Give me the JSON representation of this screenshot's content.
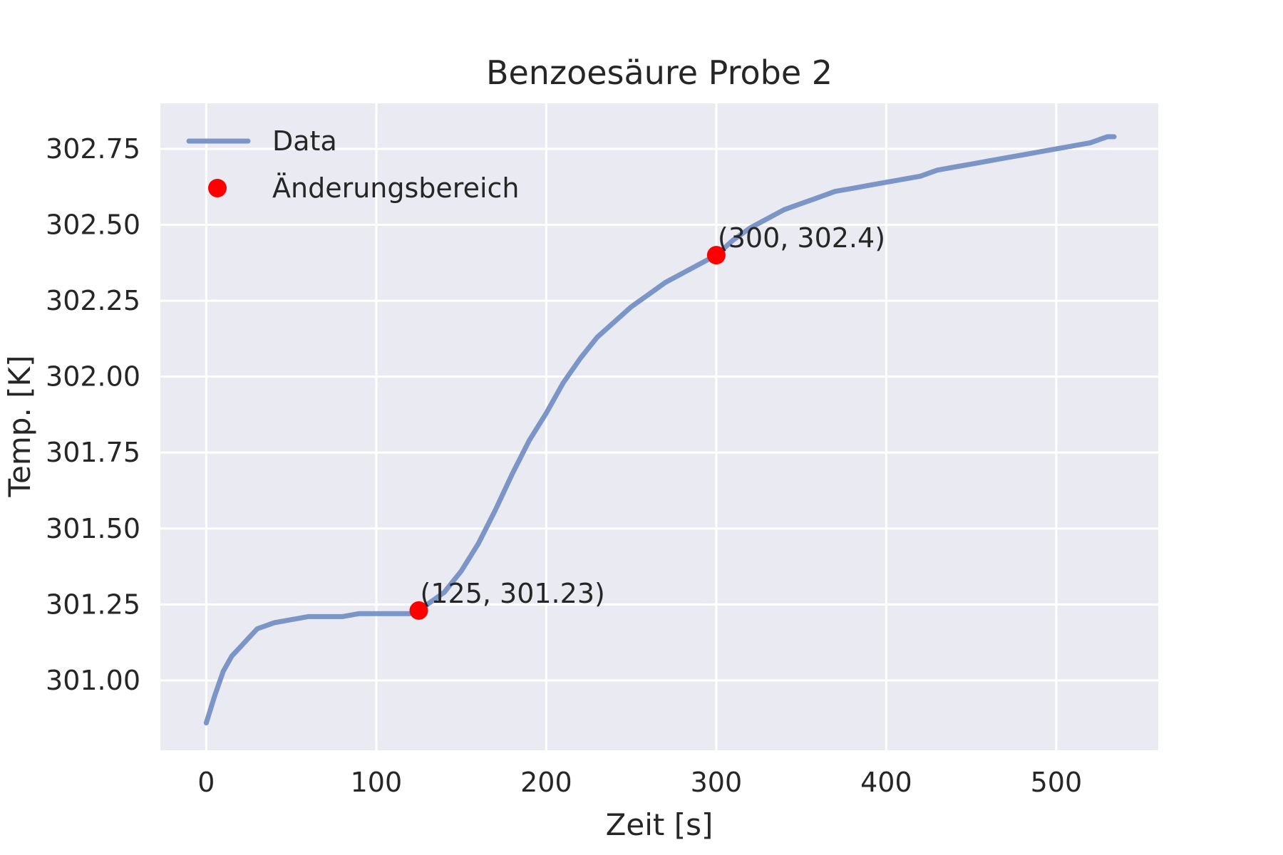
{
  "chart_data": {
    "type": "line",
    "title": "Benzoesäure Probe 2",
    "xlabel": "Zeit [s]",
    "ylabel": "Temp. [K]",
    "xlim": [
      -27,
      560
    ],
    "ylim": [
      300.77,
      302.9
    ],
    "xticks": [
      0,
      100,
      200,
      300,
      400,
      500
    ],
    "xtick_labels": [
      "0",
      "100",
      "200",
      "300",
      "400",
      "500"
    ],
    "yticks": [
      301.0,
      301.25,
      301.5,
      301.75,
      302.0,
      302.25,
      302.5,
      302.75
    ],
    "ytick_labels": [
      "301.00",
      "301.25",
      "301.50",
      "301.75",
      "302.00",
      "302.25",
      "302.50",
      "302.75"
    ],
    "grid": true,
    "legend_position": "top-left",
    "series": [
      {
        "name": "Data",
        "color": "#7b95c6",
        "x": [
          0,
          5,
          10,
          15,
          20,
          25,
          30,
          40,
          50,
          60,
          70,
          80,
          90,
          100,
          110,
          120,
          125,
          130,
          140,
          150,
          160,
          170,
          180,
          190,
          200,
          210,
          220,
          230,
          240,
          250,
          260,
          270,
          280,
          290,
          300,
          310,
          320,
          330,
          340,
          350,
          360,
          370,
          380,
          390,
          400,
          410,
          420,
          430,
          440,
          450,
          460,
          470,
          480,
          490,
          500,
          510,
          520,
          530,
          534
        ],
        "y": [
          300.86,
          300.95,
          301.03,
          301.08,
          301.11,
          301.14,
          301.17,
          301.19,
          301.2,
          301.21,
          301.21,
          301.21,
          301.22,
          301.22,
          301.22,
          301.22,
          301.23,
          301.25,
          301.29,
          301.36,
          301.45,
          301.56,
          301.68,
          301.79,
          301.88,
          301.98,
          302.06,
          302.13,
          302.18,
          302.23,
          302.27,
          302.31,
          302.34,
          302.37,
          302.4,
          302.45,
          302.49,
          302.52,
          302.55,
          302.57,
          302.59,
          302.61,
          302.62,
          302.63,
          302.64,
          302.65,
          302.66,
          302.68,
          302.69,
          302.7,
          302.71,
          302.72,
          302.73,
          302.74,
          302.75,
          302.76,
          302.77,
          302.79,
          302.79
        ]
      },
      {
        "name": "Änderungsbereich",
        "color": "#ff0000",
        "points": [
          {
            "x": 125,
            "y": 301.23,
            "label": "(125, 301.23)"
          },
          {
            "x": 300,
            "y": 302.4,
            "label": "(300, 302.4)"
          }
        ]
      }
    ]
  },
  "colors": {
    "plot_background": "#eaeaf2",
    "grid": "#ffffff",
    "text": "#262626"
  }
}
